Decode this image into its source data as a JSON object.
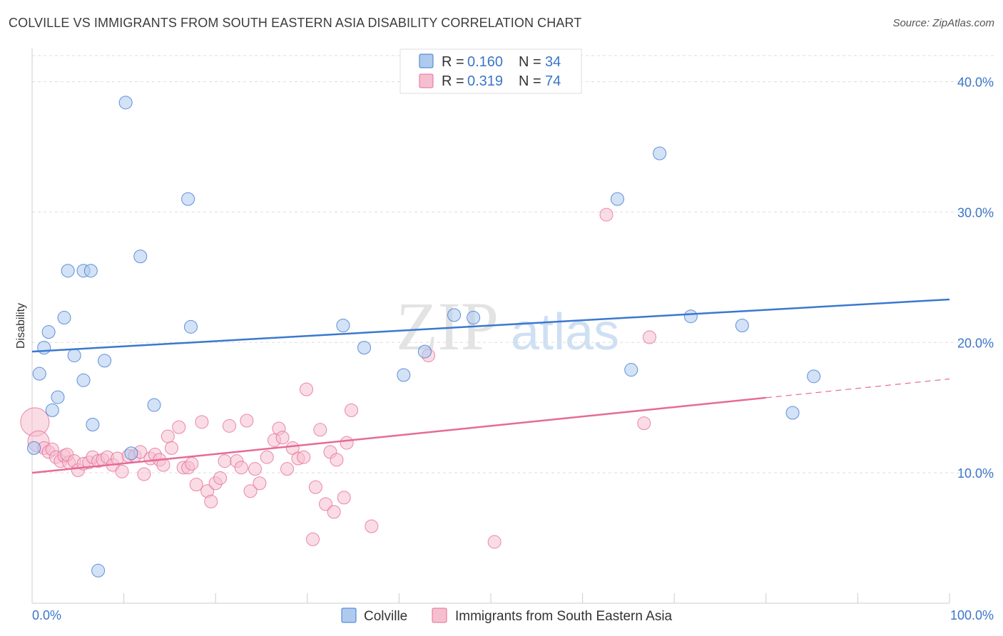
{
  "title": "COLVILLE VS IMMIGRANTS FROM SOUTH EASTERN ASIA DISABILITY CORRELATION CHART",
  "source": "Source: ZipAtlas.com",
  "watermark": {
    "zip": "ZIP",
    "atlas": "atlas"
  },
  "colors": {
    "blue": "#3b78d0",
    "blue_fill": "#aecbee",
    "pink": "#e56b97",
    "pink_fill": "#f6bfd0",
    "tick": "#3a76c9",
    "grid": "#dddddd"
  },
  "legend": {
    "r_label": "R = ",
    "n_label": "N = ",
    "rows": [
      {
        "r": "0.160",
        "n": "34"
      },
      {
        "r": "0.319",
        "n": "74"
      }
    ]
  },
  "chart_data": {
    "type": "scatter",
    "title": "COLVILLE VS IMMIGRANTS FROM SOUTH EASTERN ASIA DISABILITY CORRELATION CHART",
    "xlabel": "",
    "ylabel": "Disability",
    "xlim": [
      0,
      100
    ],
    "ylim": [
      0,
      42
    ],
    "x_tick_labels": [
      "0.0%",
      "100.0%"
    ],
    "y_ticks": [
      10,
      20,
      30,
      40
    ],
    "y_tick_labels": [
      "10.0%",
      "20.0%",
      "30.0%",
      "40.0%"
    ],
    "grid": true,
    "legend_position": "top-center",
    "series": [
      {
        "name": "Colville",
        "color": "#3b78d0",
        "trend": {
          "x": [
            0,
            100
          ],
          "y": [
            19.3,
            23.3
          ],
          "dashed_from": null
        },
        "points": [
          {
            "x": 10.2,
            "y": 38.4
          },
          {
            "x": 17.0,
            "y": 31.0
          },
          {
            "x": 3.9,
            "y": 25.5
          },
          {
            "x": 5.6,
            "y": 25.5
          },
          {
            "x": 6.4,
            "y": 25.5
          },
          {
            "x": 11.8,
            "y": 26.6
          },
          {
            "x": 3.5,
            "y": 21.9
          },
          {
            "x": 1.8,
            "y": 20.8
          },
          {
            "x": 1.3,
            "y": 19.6
          },
          {
            "x": 4.6,
            "y": 19.0
          },
          {
            "x": 7.9,
            "y": 18.6
          },
          {
            "x": 0.8,
            "y": 17.6
          },
          {
            "x": 5.6,
            "y": 17.1
          },
          {
            "x": 2.8,
            "y": 15.8
          },
          {
            "x": 2.2,
            "y": 14.8
          },
          {
            "x": 13.3,
            "y": 15.2
          },
          {
            "x": 6.6,
            "y": 13.7
          },
          {
            "x": 10.8,
            "y": 11.5
          },
          {
            "x": 0.2,
            "y": 11.9
          },
          {
            "x": 7.2,
            "y": 2.5
          },
          {
            "x": 17.3,
            "y": 21.2
          },
          {
            "x": 33.9,
            "y": 21.3
          },
          {
            "x": 36.2,
            "y": 19.6
          },
          {
            "x": 40.5,
            "y": 17.5
          },
          {
            "x": 42.8,
            "y": 19.3
          },
          {
            "x": 46.0,
            "y": 22.1
          },
          {
            "x": 48.1,
            "y": 21.9
          },
          {
            "x": 63.8,
            "y": 31.0
          },
          {
            "x": 68.4,
            "y": 34.5
          },
          {
            "x": 65.3,
            "y": 17.9
          },
          {
            "x": 71.8,
            "y": 22.0
          },
          {
            "x": 77.4,
            "y": 21.3
          },
          {
            "x": 85.2,
            "y": 17.4
          },
          {
            "x": 82.9,
            "y": 14.6
          }
        ]
      },
      {
        "name": "Immigrants from South Eastern Asia",
        "color": "#e56b97",
        "trend": {
          "x": [
            0,
            100
          ],
          "y": [
            10.0,
            17.2
          ],
          "dashed_from": 80
        },
        "points": [
          {
            "x": 0.3,
            "y": 13.9
          },
          {
            "x": 0.7,
            "y": 12.4
          },
          {
            "x": 1.3,
            "y": 11.9
          },
          {
            "x": 1.8,
            "y": 11.6
          },
          {
            "x": 2.2,
            "y": 11.8
          },
          {
            "x": 2.6,
            "y": 11.2
          },
          {
            "x": 3.1,
            "y": 10.9
          },
          {
            "x": 3.5,
            "y": 11.3
          },
          {
            "x": 4.0,
            "y": 10.8
          },
          {
            "x": 3.8,
            "y": 11.4
          },
          {
            "x": 4.6,
            "y": 10.9
          },
          {
            "x": 5.0,
            "y": 10.2
          },
          {
            "x": 5.6,
            "y": 10.7
          },
          {
            "x": 6.2,
            "y": 10.8
          },
          {
            "x": 6.6,
            "y": 11.2
          },
          {
            "x": 7.2,
            "y": 10.9
          },
          {
            "x": 7.7,
            "y": 11.0
          },
          {
            "x": 8.2,
            "y": 11.2
          },
          {
            "x": 8.8,
            "y": 10.6
          },
          {
            "x": 9.3,
            "y": 11.1
          },
          {
            "x": 9.8,
            "y": 10.1
          },
          {
            "x": 10.5,
            "y": 11.3
          },
          {
            "x": 11.2,
            "y": 11.3
          },
          {
            "x": 11.8,
            "y": 11.6
          },
          {
            "x": 12.2,
            "y": 9.9
          },
          {
            "x": 12.9,
            "y": 11.1
          },
          {
            "x": 13.4,
            "y": 11.4
          },
          {
            "x": 13.9,
            "y": 11.0
          },
          {
            "x": 14.3,
            "y": 10.6
          },
          {
            "x": 14.8,
            "y": 12.8
          },
          {
            "x": 15.2,
            "y": 11.9
          },
          {
            "x": 16.0,
            "y": 13.5
          },
          {
            "x": 16.5,
            "y": 10.4
          },
          {
            "x": 17.0,
            "y": 10.4
          },
          {
            "x": 17.4,
            "y": 10.7
          },
          {
            "x": 17.9,
            "y": 9.1
          },
          {
            "x": 18.5,
            "y": 13.9
          },
          {
            "x": 19.1,
            "y": 8.6
          },
          {
            "x": 19.5,
            "y": 7.8
          },
          {
            "x": 20.0,
            "y": 9.2
          },
          {
            "x": 20.5,
            "y": 9.6
          },
          {
            "x": 21.0,
            "y": 10.9
          },
          {
            "x": 21.5,
            "y": 13.6
          },
          {
            "x": 22.3,
            "y": 10.9
          },
          {
            "x": 22.8,
            "y": 10.4
          },
          {
            "x": 23.4,
            "y": 14.0
          },
          {
            "x": 23.8,
            "y": 8.6
          },
          {
            "x": 24.3,
            "y": 10.3
          },
          {
            "x": 24.8,
            "y": 9.2
          },
          {
            "x": 25.6,
            "y": 11.2
          },
          {
            "x": 26.4,
            "y": 12.5
          },
          {
            "x": 26.9,
            "y": 13.4
          },
          {
            "x": 27.3,
            "y": 12.7
          },
          {
            "x": 27.8,
            "y": 10.3
          },
          {
            "x": 28.4,
            "y": 11.9
          },
          {
            "x": 29.0,
            "y": 11.1
          },
          {
            "x": 29.6,
            "y": 11.2
          },
          {
            "x": 29.9,
            "y": 16.4
          },
          {
            "x": 30.6,
            "y": 4.9
          },
          {
            "x": 30.9,
            "y": 8.9
          },
          {
            "x": 31.4,
            "y": 13.3
          },
          {
            "x": 32.0,
            "y": 7.6
          },
          {
            "x": 32.5,
            "y": 11.6
          },
          {
            "x": 32.9,
            "y": 7.0
          },
          {
            "x": 34.0,
            "y": 8.1
          },
          {
            "x": 34.3,
            "y": 12.3
          },
          {
            "x": 34.8,
            "y": 14.8
          },
          {
            "x": 37.0,
            "y": 5.9
          },
          {
            "x": 43.2,
            "y": 19.0
          },
          {
            "x": 50.4,
            "y": 4.7
          },
          {
            "x": 62.6,
            "y": 29.8
          },
          {
            "x": 66.7,
            "y": 13.8
          },
          {
            "x": 67.3,
            "y": 20.4
          },
          {
            "x": 33.2,
            "y": 11.0
          }
        ]
      }
    ]
  }
}
